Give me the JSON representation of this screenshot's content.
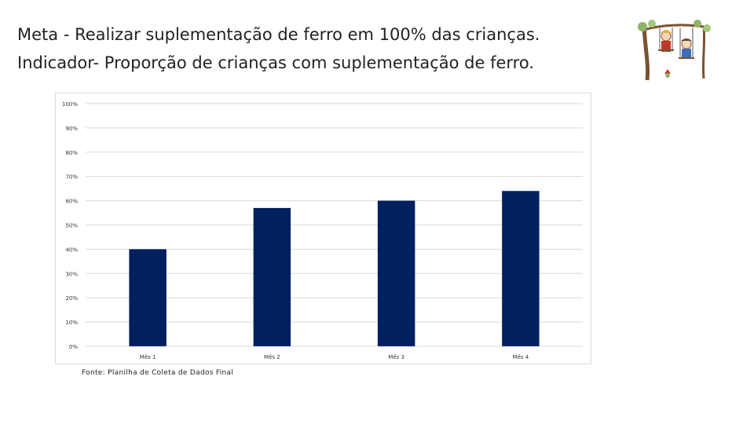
{
  "slide": {
    "goal_line": "Meta - Realizar suplementação de ferro em 100% das crianças.",
    "indicator_line": "Indicador- Proporção de crianças com suplementação de ferro.",
    "source_note": "Fonte: Planilha de Coleta de Dados Final"
  },
  "logo": {
    "icon": "children-on-tree-swing-illustration"
  },
  "chart_data": {
    "type": "bar",
    "categories": [
      "Mês 1",
      "Mês 2",
      "Mês 3",
      "Mês 4"
    ],
    "values": [
      40,
      57,
      60,
      64
    ],
    "ylim": [
      0,
      100
    ],
    "yticks": [
      "0%",
      "10%",
      "20%",
      "30%",
      "40%",
      "50%",
      "60%",
      "70%",
      "80%",
      "90%",
      "100%"
    ],
    "bar_color": "#002060",
    "grid": true,
    "legend": "none"
  }
}
